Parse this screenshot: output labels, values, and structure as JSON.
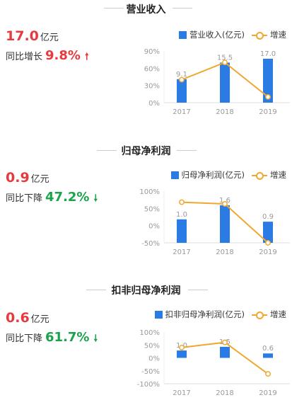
{
  "chart_data": [
    {
      "type": "bar",
      "title": "营业收入",
      "headline_value": "17.0",
      "headline_unit": "亿元",
      "yoy_label": "同比增长",
      "yoy_value": "9.8%",
      "yoy_direction": "up",
      "yoy_color": "#e8393f",
      "categories": [
        "2017",
        "2018",
        "2019"
      ],
      "series": [
        {
          "name": "营业收入(亿元)",
          "type": "bar",
          "values": [
            9.1,
            15.5,
            17.0
          ],
          "labels": [
            "9.1",
            "15.5",
            "17.0"
          ],
          "color": "#2a7be4"
        },
        {
          "name": "增速",
          "type": "line",
          "values": [
            40,
            70,
            10
          ],
          "color": "#f0a830"
        }
      ],
      "y_ticks": [
        "90%",
        "60%",
        "30%",
        "0%"
      ],
      "y_tick_values": [
        90,
        60,
        30,
        0
      ],
      "ylim": [
        0,
        90
      ],
      "bar_ylim": [
        0,
        20
      ]
    },
    {
      "type": "bar",
      "title": "归母净利润",
      "headline_value": "0.9",
      "headline_unit": "亿元",
      "yoy_label": "同比下降",
      "yoy_value": "47.2%",
      "yoy_direction": "down",
      "yoy_color": "#1aa34a",
      "categories": [
        "2017",
        "2018",
        "2019"
      ],
      "series": [
        {
          "name": "归母净利润(亿元)",
          "type": "bar",
          "values": [
            1.0,
            1.6,
            0.9
          ],
          "labels": [
            "1.0",
            "1.6",
            "0.9"
          ],
          "color": "#2a7be4"
        },
        {
          "name": "增速",
          "type": "line",
          "values": [
            68,
            63,
            -50
          ],
          "color": "#f0a830"
        }
      ],
      "y_ticks": [
        "100%",
        "50%",
        "0%",
        "-50%"
      ],
      "y_tick_values": [
        100,
        50,
        0,
        -50
      ],
      "ylim": [
        -50,
        100
      ],
      "bar_ylim": [
        0,
        2.2
      ]
    },
    {
      "type": "bar",
      "title": "扣非归母净利润",
      "headline_value": "0.6",
      "headline_unit": "亿元",
      "yoy_label": "同比下降",
      "yoy_value": "61.7%",
      "yoy_direction": "down",
      "yoy_color": "#1aa34a",
      "categories": [
        "2017",
        "2018",
        "2019"
      ],
      "series": [
        {
          "name": "扣非归母净利润(亿元)",
          "type": "bar",
          "values": [
            1.0,
            1.5,
            0.6
          ],
          "labels": [
            "1.0",
            "1.5",
            "0.6"
          ],
          "color": "#2a7be4"
        },
        {
          "name": "增速",
          "type": "line",
          "values": [
            40,
            60,
            -62
          ],
          "color": "#f0a830"
        }
      ],
      "y_ticks": [
        "100%",
        "50%",
        "0%",
        "-50%",
        "-100%"
      ],
      "y_tick_values": [
        100,
        50,
        0,
        -50,
        -100
      ],
      "ylim": [
        -100,
        100
      ],
      "bar_ylim": [
        -3.5,
        3.5
      ]
    }
  ]
}
